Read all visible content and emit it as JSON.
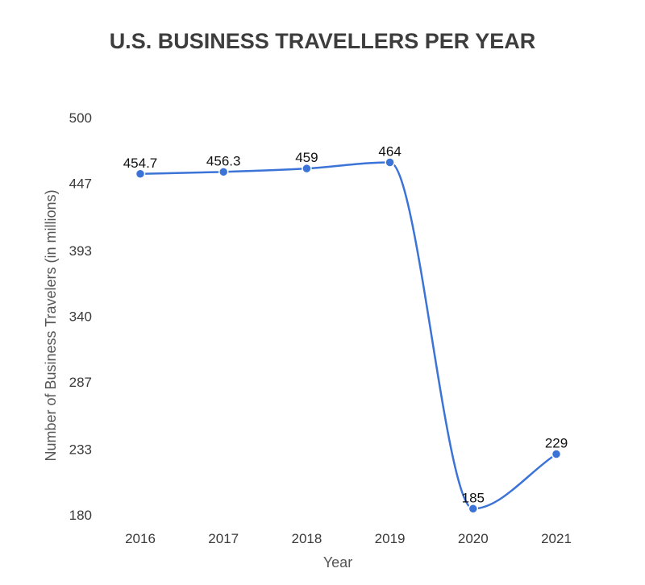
{
  "chart_data": {
    "type": "line",
    "title": "U.S. BUSINESS TRAVELLERS PER YEAR",
    "xlabel": "Year",
    "ylabel": "Number of Business Travelers (in millions)",
    "categories": [
      "2016",
      "2017",
      "2018",
      "2019",
      "2020",
      "2021"
    ],
    "series": [
      {
        "values": [
          454.7,
          456.3,
          459,
          464,
          185,
          229
        ],
        "data_labels": [
          "454.7",
          "456.3",
          "459",
          "464",
          "185",
          "229"
        ],
        "color": "#3b73d6"
      }
    ],
    "yticks": [
      "500",
      "447",
      "393",
      "340",
      "287",
      "233",
      "180"
    ],
    "ylim": [
      180,
      500
    ],
    "grid": false,
    "legend": "none",
    "smooth": true
  }
}
